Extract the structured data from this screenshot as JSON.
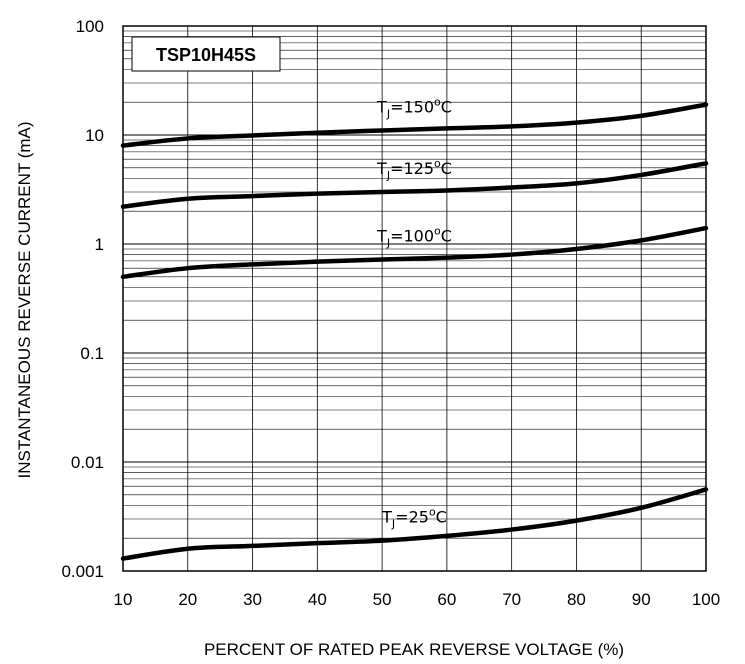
{
  "chart_data": {
    "type": "line",
    "title": "TSP10H45S",
    "xlabel": "PERCENT OF RATED PEAK REVERSE VOLTAGE (%)",
    "ylabel": "INSTANTANEOUS REVERSE CURRENT (mA)",
    "x_ticks": [
      "10",
      "20",
      "30",
      "40",
      "50",
      "60",
      "70",
      "80",
      "90",
      "100"
    ],
    "y_ticks": [
      "0.001",
      "0.01",
      "0.1",
      "1",
      "10",
      "100"
    ],
    "xlim": [
      10,
      100
    ],
    "ylim": [
      0.001,
      100
    ],
    "y_scale": "log",
    "grid": true,
    "series": [
      {
        "name": "TJ=150°C",
        "label_parts": [
          "T",
          "J",
          "=150",
          "o",
          "C"
        ],
        "x": [
          10,
          20,
          30,
          40,
          50,
          60,
          70,
          80,
          90,
          100
        ],
        "values": [
          8.0,
          9.3,
          9.9,
          10.5,
          11.0,
          11.5,
          12.0,
          13.0,
          15.0,
          19.0
        ]
      },
      {
        "name": "TJ=125°C",
        "label_parts": [
          "T",
          "J",
          "=125",
          "o",
          "C"
        ],
        "x": [
          10,
          20,
          30,
          40,
          50,
          60,
          70,
          80,
          90,
          100
        ],
        "values": [
          2.2,
          2.6,
          2.75,
          2.9,
          3.0,
          3.1,
          3.3,
          3.6,
          4.3,
          5.5
        ]
      },
      {
        "name": "TJ=100°C",
        "label_parts": [
          "T",
          "J",
          "=100",
          "o",
          "C"
        ],
        "x": [
          10,
          20,
          30,
          40,
          50,
          60,
          70,
          80,
          90,
          100
        ],
        "values": [
          0.5,
          0.6,
          0.65,
          0.69,
          0.72,
          0.75,
          0.8,
          0.9,
          1.08,
          1.4
        ]
      },
      {
        "name": "TJ=25°C",
        "label_parts": [
          "T",
          "J",
          "=25",
          "o",
          "C"
        ],
        "x": [
          10,
          20,
          30,
          40,
          50,
          60,
          70,
          80,
          90,
          100
        ],
        "values": [
          0.0013,
          0.0016,
          0.0017,
          0.0018,
          0.0019,
          0.0021,
          0.0024,
          0.0029,
          0.0038,
          0.0056
        ]
      }
    ]
  }
}
